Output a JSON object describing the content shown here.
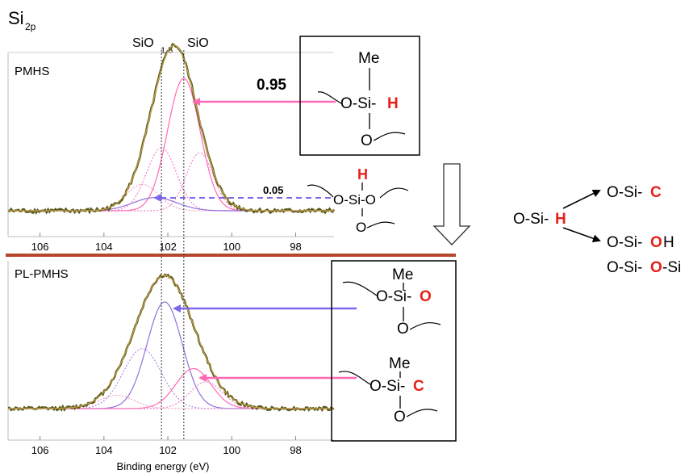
{
  "figure": {
    "region_label": "Si",
    "region_sub": "2p",
    "ref_labels": {
      "sio15_main": "SiO",
      "sio15_sub": "1.5",
      "sio": "SiO"
    },
    "xlabel": "Binding energy (eV)"
  },
  "chart_data": [
    {
      "type": "line",
      "panel": "PMHS",
      "xlabel": "Binding energy (eV)",
      "x_ticks": [
        106,
        104,
        102,
        100,
        98
      ],
      "x_reversed": true,
      "xlim": [
        107,
        96.8
      ],
      "reference_lines": {
        "SiO1.5": 102.2,
        "SiO": 101.5
      },
      "series": [
        {
          "role": "measured",
          "color": "#5a5a1a",
          "peak_x": 101.8,
          "fwhm": 1.7,
          "height": 1.0
        },
        {
          "role": "fit envelope",
          "color": "#c8a050",
          "peak_x": 101.8,
          "fwhm": 1.7,
          "height": 1.0
        },
        {
          "role": "O-Si-H component",
          "color": "#ff69b4",
          "style": "solid",
          "peak_x": 101.5,
          "fwhm": 1.2,
          "height": 0.8
        },
        {
          "role": "component",
          "color": "#ee82c8",
          "style": "dotted",
          "peak_x": 102.2,
          "fwhm": 1.1,
          "height": 0.38
        },
        {
          "role": "component",
          "color": "#ee82c8",
          "style": "dotted",
          "peak_x": 101.0,
          "fwhm": 1.0,
          "height": 0.35
        },
        {
          "role": "component",
          "color": "#f0a0c8",
          "style": "dotted",
          "peak_x": 102.8,
          "fwhm": 1.2,
          "height": 0.16
        },
        {
          "role": "component",
          "color": "#9370db",
          "style": "solid",
          "peak_x": 102.4,
          "fwhm": 1.6,
          "height": 0.08
        }
      ],
      "annotations": [
        "0.95",
        "0.05"
      ]
    },
    {
      "type": "line",
      "panel": "PL-PMHS",
      "xlabel": "Binding energy (eV)",
      "x_ticks": [
        106,
        104,
        102,
        100,
        98
      ],
      "x_reversed": true,
      "xlim": [
        107,
        96.8
      ],
      "reference_lines": {
        "SiO1.5": 102.2,
        "SiO": 101.5
      },
      "series": [
        {
          "role": "measured",
          "color": "#5a5a1a",
          "peak_x": 102.1,
          "fwhm": 2.2,
          "height": 1.0
        },
        {
          "role": "fit envelope",
          "color": "#c8a050",
          "peak_x": 102.1,
          "fwhm": 2.2,
          "height": 1.0
        },
        {
          "role": "O-Si-O component",
          "color": "#9370db",
          "style": "solid",
          "peak_x": 102.1,
          "fwhm": 1.3,
          "height": 0.8
        },
        {
          "role": "O-Si-C component",
          "color": "#ff69b4",
          "style": "solid",
          "peak_x": 101.2,
          "fwhm": 1.3,
          "height": 0.3
        },
        {
          "role": "component",
          "color": "#b48ce6",
          "style": "dotted",
          "peak_x": 102.8,
          "fwhm": 1.4,
          "height": 0.45
        },
        {
          "role": "component",
          "color": "#ee82c8",
          "style": "dotted",
          "peak_x": 100.8,
          "fwhm": 1.2,
          "height": 0.2
        },
        {
          "role": "component",
          "color": "#f0a0c8",
          "style": "dotted",
          "peak_x": 103.6,
          "fwhm": 1.3,
          "height": 0.1
        }
      ]
    }
  ],
  "labels": {
    "pmhs": "PMHS",
    "plpmhs": "PL-PMHS",
    "val_095": "0.95",
    "val_005": "0.05"
  },
  "structures": {
    "box1": {
      "me": "Me",
      "o_si": "O-Si-",
      "sub": "H",
      "o": "O"
    },
    "free_h": {
      "h": "H",
      "o_si_o": "O-Si-O",
      "o": "O"
    },
    "box2": {
      "me": "Me",
      "o_si": "O-Si-",
      "sub": "O",
      "o": "O"
    },
    "box3": {
      "me": "Me",
      "o_si": "O-Si-",
      "sub": "C",
      "o": "O"
    }
  },
  "scheme": {
    "reactant_pre": "O-Si-",
    "reactant_h": "H",
    "p1_pre": "O-Si-",
    "p1_red": "C",
    "p2_pre": "O-Si-",
    "p2_red": "O",
    "p2_post": "H",
    "p3_pre": "O-Si-",
    "p3_red": "O",
    "p3_post": "-Si"
  },
  "colors": {
    "pink": "#ff69b4",
    "purple": "#7b68ee",
    "red": "#e8201a",
    "separator": "#b5472a",
    "black": "#000000"
  }
}
